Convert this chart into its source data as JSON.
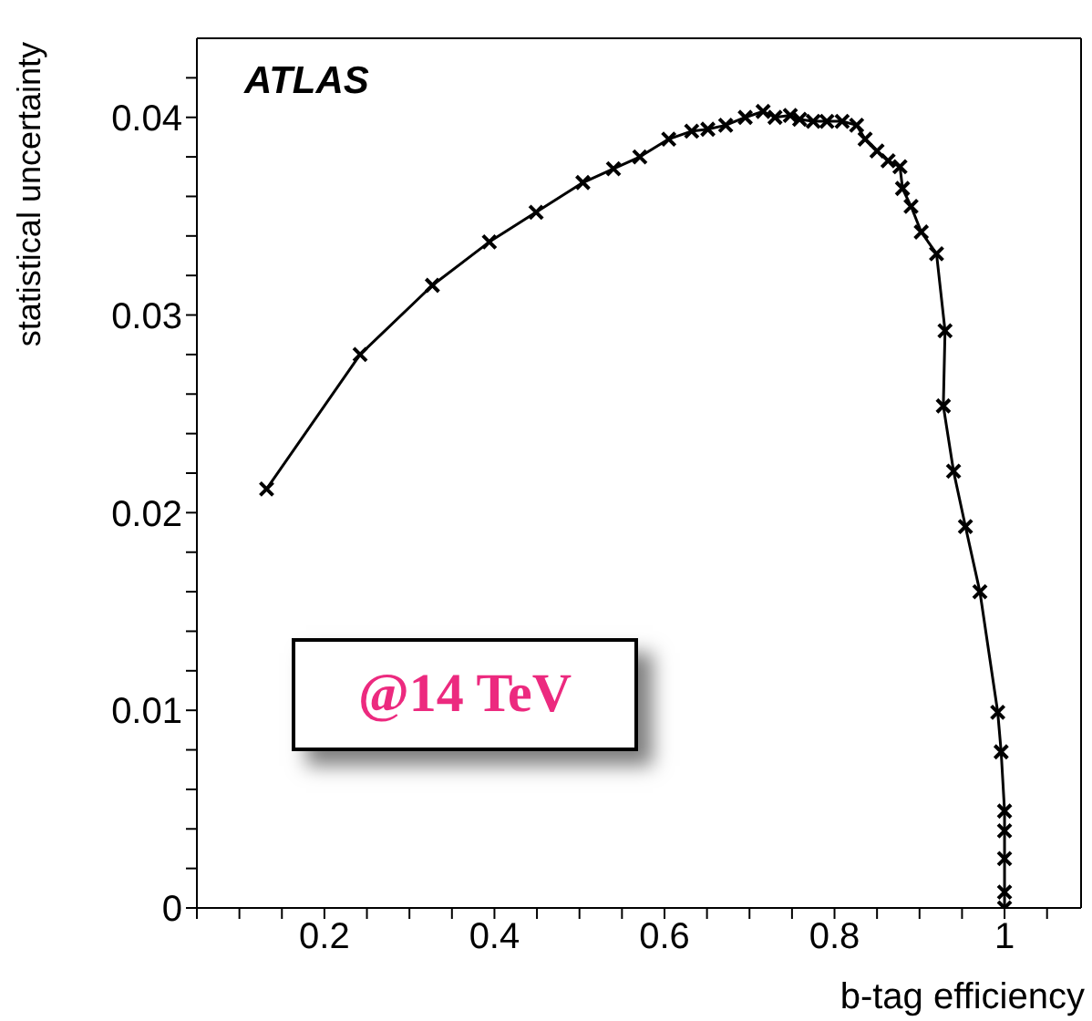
{
  "chart_data": {
    "type": "line",
    "xlabel": "b-tag efficiency",
    "ylabel": "statistical uncertainty",
    "annotations": [
      "ATLAS",
      "@14 TeV"
    ],
    "x": [
      0.132,
      0.242,
      0.327,
      0.394,
      0.449,
      0.504,
      0.54,
      0.571,
      0.605,
      0.632,
      0.651,
      0.672,
      0.695,
      0.716,
      0.73,
      0.748,
      0.759,
      0.775,
      0.791,
      0.809,
      0.826,
      0.836,
      0.85,
      0.863,
      0.877,
      0.88,
      0.89,
      0.902,
      0.92,
      0.93,
      0.928,
      0.94,
      0.954,
      0.971,
      0.992,
      0.996,
      1.0,
      1.0,
      1.0,
      1.0,
      1.0
    ],
    "series": [
      {
        "color": "#000000",
        "values": [
          0.0212,
          0.028,
          0.0315,
          0.0337,
          0.0352,
          0.0367,
          0.0374,
          0.038,
          0.0389,
          0.0393,
          0.0394,
          0.0396,
          0.04,
          0.0403,
          0.04,
          0.0401,
          0.0399,
          0.0398,
          0.0398,
          0.0398,
          0.0396,
          0.0389,
          0.0383,
          0.0378,
          0.0375,
          0.0364,
          0.0355,
          0.0342,
          0.0331,
          0.0292,
          0.0254,
          0.0221,
          0.0193,
          0.016,
          0.0099,
          0.0079,
          0.0049,
          0.0039,
          0.0025,
          0.0008,
          0.0
        ]
      }
    ],
    "xlim": [
      0.05,
      1.09
    ],
    "xticks": [
      {
        "value": 0.05,
        "label": null
      },
      {
        "value": 0.1,
        "label": null
      },
      {
        "value": 0.15,
        "label": null
      },
      0.2,
      {
        "value": 0.25,
        "label": null
      },
      {
        "value": 0.3,
        "label": null
      },
      {
        "value": 0.35,
        "label": null
      },
      0.4,
      {
        "value": 0.45,
        "label": null
      },
      {
        "value": 0.5,
        "label": null
      },
      {
        "value": 0.55,
        "label": null
      },
      0.6,
      {
        "value": 0.65,
        "label": null
      },
      {
        "value": 0.7,
        "label": null
      },
      {
        "value": 0.75,
        "label": null
      },
      0.8,
      {
        "value": 0.85,
        "label": null
      },
      {
        "value": 0.9,
        "label": null
      },
      {
        "value": 0.95,
        "label": null
      },
      1,
      {
        "value": 1.05,
        "label": null
      }
    ],
    "ylim": [
      0,
      0.044
    ],
    "yticks": [
      0,
      {
        "value": 0.002,
        "label": null
      },
      {
        "value": 0.004,
        "label": null
      },
      {
        "value": 0.006,
        "label": null
      },
      {
        "value": 0.008,
        "label": null
      },
      0.01,
      {
        "value": 0.012,
        "label": null
      },
      {
        "value": 0.014,
        "label": null
      },
      {
        "value": 0.016,
        "label": null
      },
      {
        "value": 0.018,
        "label": null
      },
      0.02,
      {
        "value": 0.022,
        "label": null
      },
      {
        "value": 0.024,
        "label": null
      },
      {
        "value": 0.026,
        "label": null
      },
      {
        "value": 0.028,
        "label": null
      },
      0.03,
      {
        "value": 0.032,
        "label": null
      },
      {
        "value": 0.034,
        "label": null
      },
      {
        "value": 0.036,
        "label": null
      },
      {
        "value": 0.038,
        "label": null
      },
      0.04,
      {
        "value": 0.042,
        "label": null
      }
    ],
    "grid": false,
    "legend": false,
    "marker": "cross",
    "line_style": "solid"
  }
}
